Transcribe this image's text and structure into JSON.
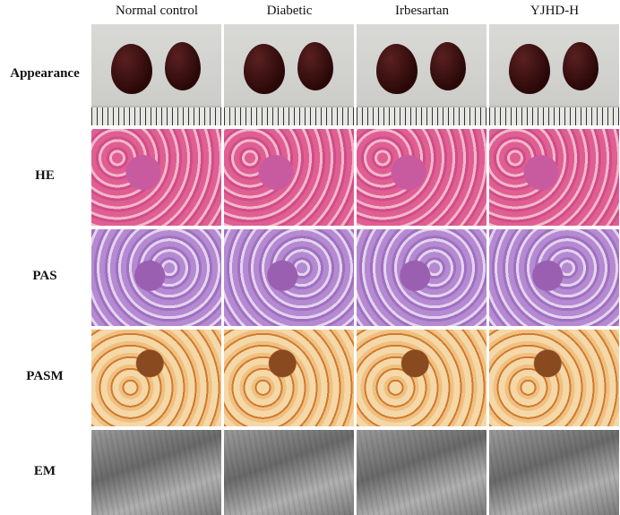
{
  "columns": [
    "Normal control",
    "Diabetic",
    "Irbesartan",
    "YJHD-H"
  ],
  "rows": [
    "Appearance",
    "HE",
    "PAS",
    "PASM",
    "EM"
  ]
}
